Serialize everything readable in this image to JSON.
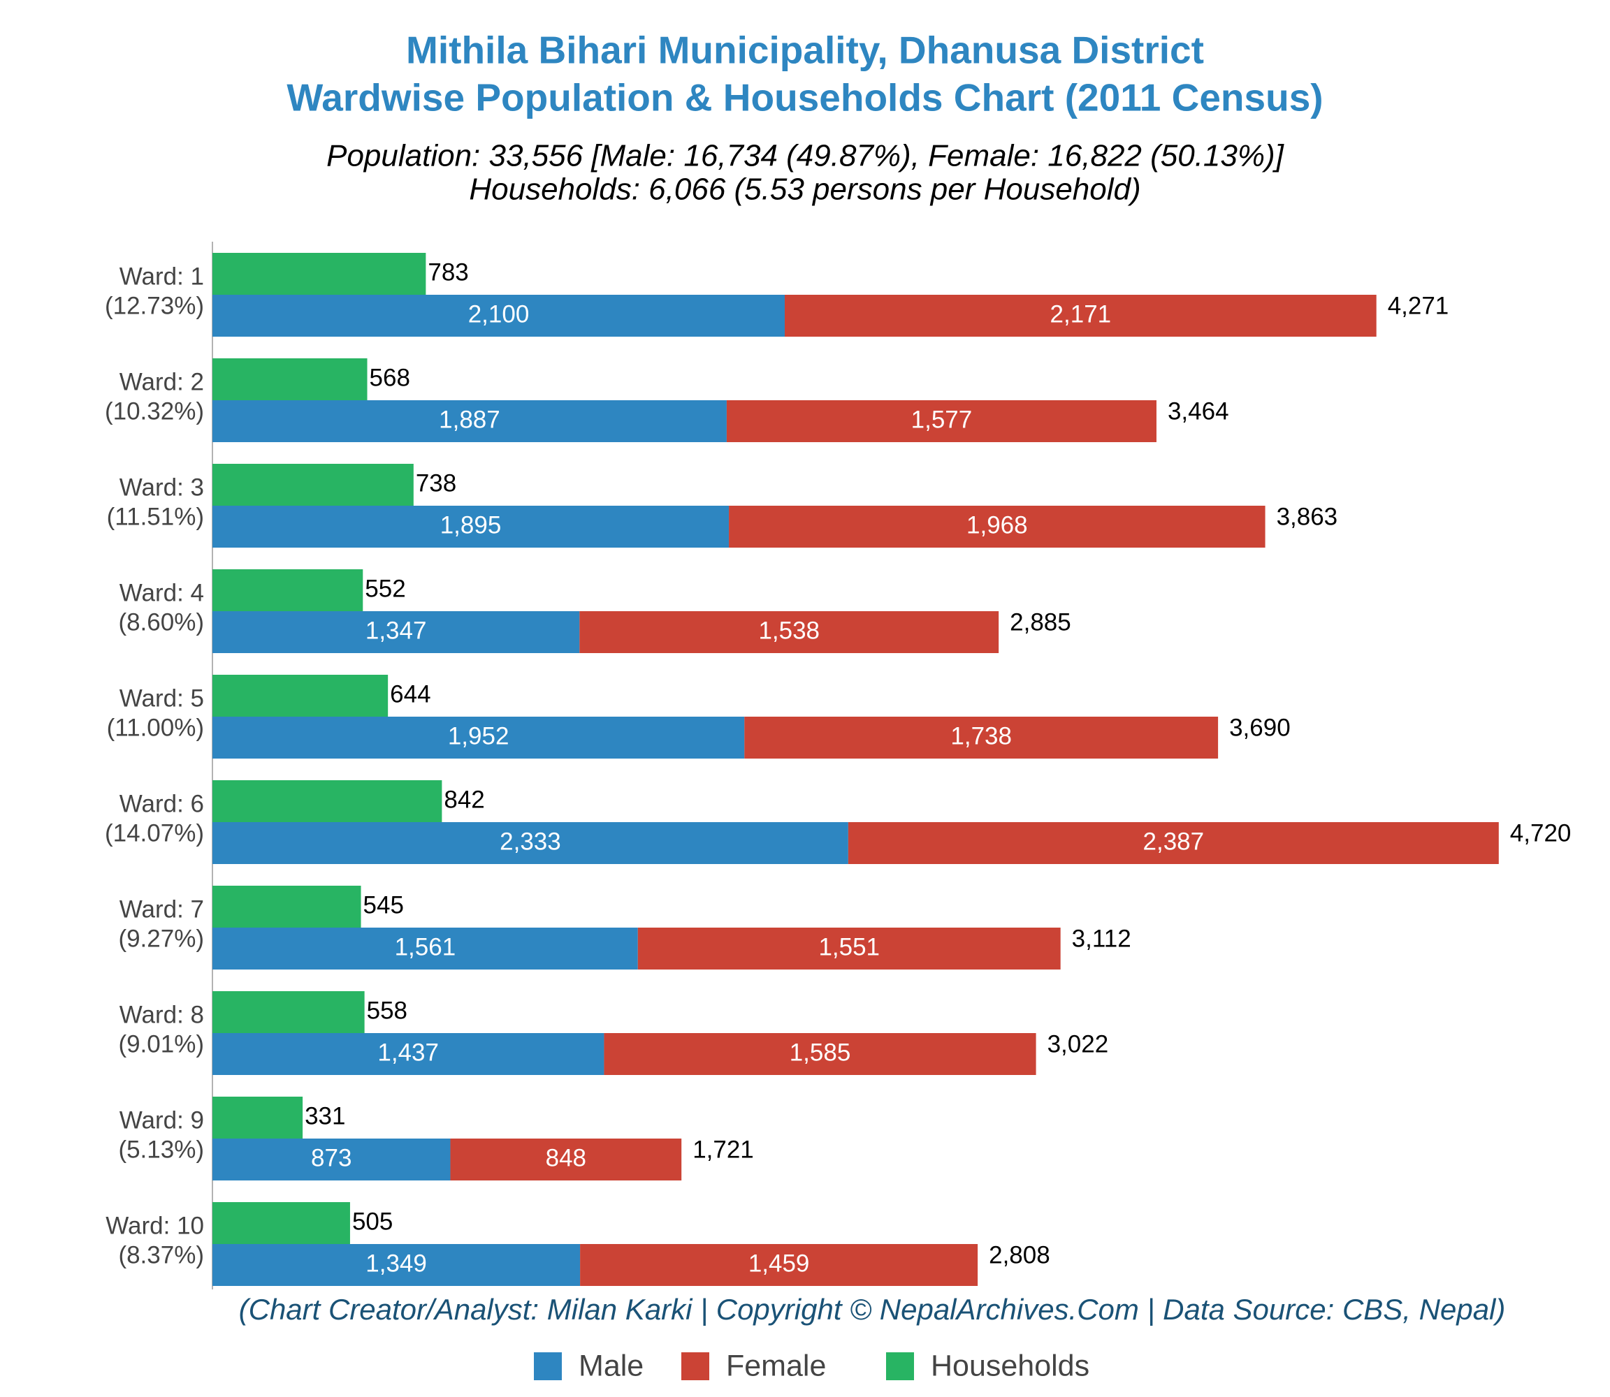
{
  "chart_data": {
    "type": "bar",
    "title": [
      "Mithila Bihari Municipality, Dhanusa District",
      "Wardwise Population & Households Chart (2011 Census)"
    ],
    "subtitle": [
      "Population: 33,556 [Male: 16,734 (49.87%), Female: 16,822 (50.13%)]",
      "Households: 6,066 (5.53 persons per Household)"
    ],
    "credit": "(Chart Creator/Analyst: Milan Karki | Copyright © NepalArchives.Com | Data Source: CBS, Nepal)",
    "categories": [
      "Ward: 1",
      "Ward: 2",
      "Ward: 3",
      "Ward: 4",
      "Ward: 5",
      "Ward: 6",
      "Ward: 7",
      "Ward: 8",
      "Ward: 9",
      "Ward: 10"
    ],
    "category_shares": [
      "(12.73%)",
      "(10.32%)",
      "(11.51%)",
      "(8.60%)",
      "(11.00%)",
      "(14.07%)",
      "(9.27%)",
      "(9.01%)",
      "(5.13%)",
      "(8.37%)"
    ],
    "series": [
      {
        "name": "Male",
        "color": "#2e86c1",
        "stack": "population",
        "values": [
          2100,
          1887,
          1895,
          1347,
          1952,
          2333,
          1561,
          1437,
          873,
          1349
        ],
        "value_labels": [
          "2,100",
          "1,887",
          "1,895",
          "1,347",
          "1,952",
          "2,333",
          "1,561",
          "1,437",
          "873",
          "1,349"
        ]
      },
      {
        "name": "Female",
        "color": "#cb4335",
        "stack": "population",
        "values": [
          2171,
          1577,
          1968,
          1538,
          1738,
          2387,
          1551,
          1585,
          848,
          1459
        ],
        "value_labels": [
          "2,171",
          "1,577",
          "1,968",
          "1,538",
          "1,738",
          "2,387",
          "1,551",
          "1,585",
          "848",
          "1,459"
        ]
      },
      {
        "name": "Households",
        "color": "#28b463",
        "stack": "households",
        "values": [
          783,
          568,
          738,
          552,
          644,
          842,
          545,
          558,
          331,
          505
        ]
      }
    ],
    "totals": {
      "values": [
        4271,
        3464,
        3863,
        2885,
        3690,
        4720,
        3112,
        3022,
        1721,
        2808
      ],
      "value_labels": [
        "4,271",
        "3,464",
        "3,863",
        "2,885",
        "3,690",
        "4,720",
        "3,112",
        "3,022",
        "1,721",
        "2,808"
      ]
    },
    "xlim": [
      0,
      5000
    ],
    "legend": "bottom"
  }
}
